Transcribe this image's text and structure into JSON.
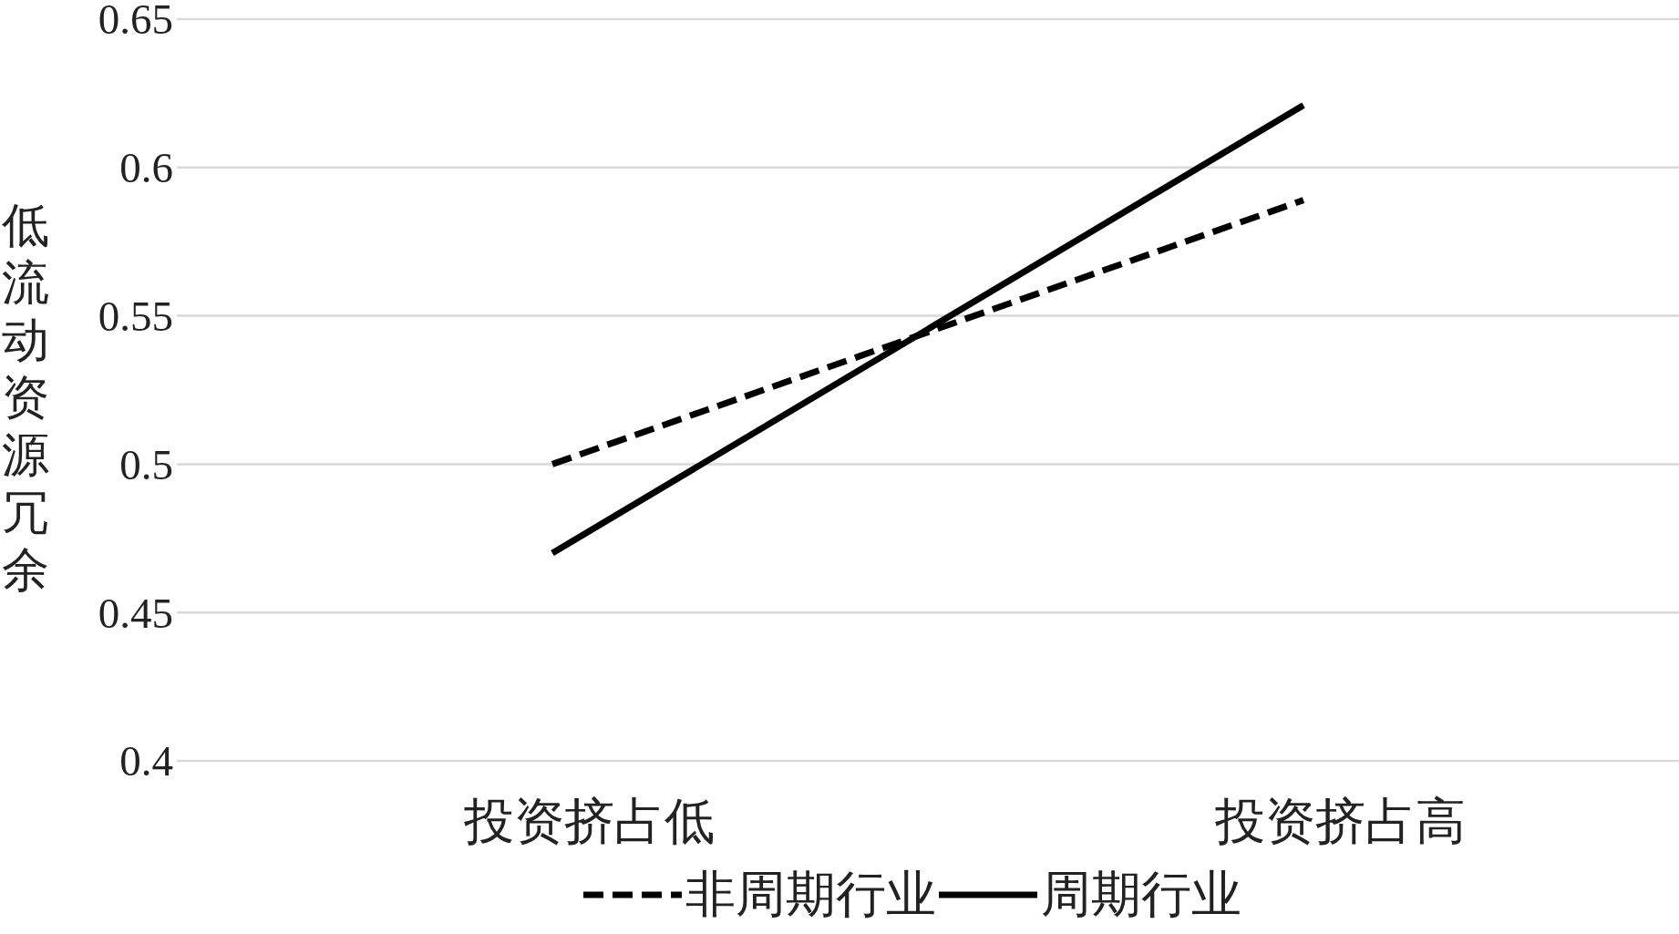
{
  "chart_data": {
    "type": "line",
    "ylabel": "低流动资源冗余",
    "categories": [
      "投资挤占低",
      "投资挤占高"
    ],
    "series": [
      {
        "name": "非周期行业",
        "color": "#000000",
        "values": [
          0.5,
          0.589
        ],
        "line_style": "dashed"
      },
      {
        "name": "周期行业",
        "color": "#000000",
        "values": [
          0.47,
          0.621
        ],
        "line_style": "solid"
      }
    ],
    "ylim": [
      0.4,
      0.65
    ],
    "yticks": [
      0.4,
      0.45,
      0.5,
      0.55,
      0.6,
      0.65
    ],
    "grid": "y",
    "legend": "bottom"
  }
}
